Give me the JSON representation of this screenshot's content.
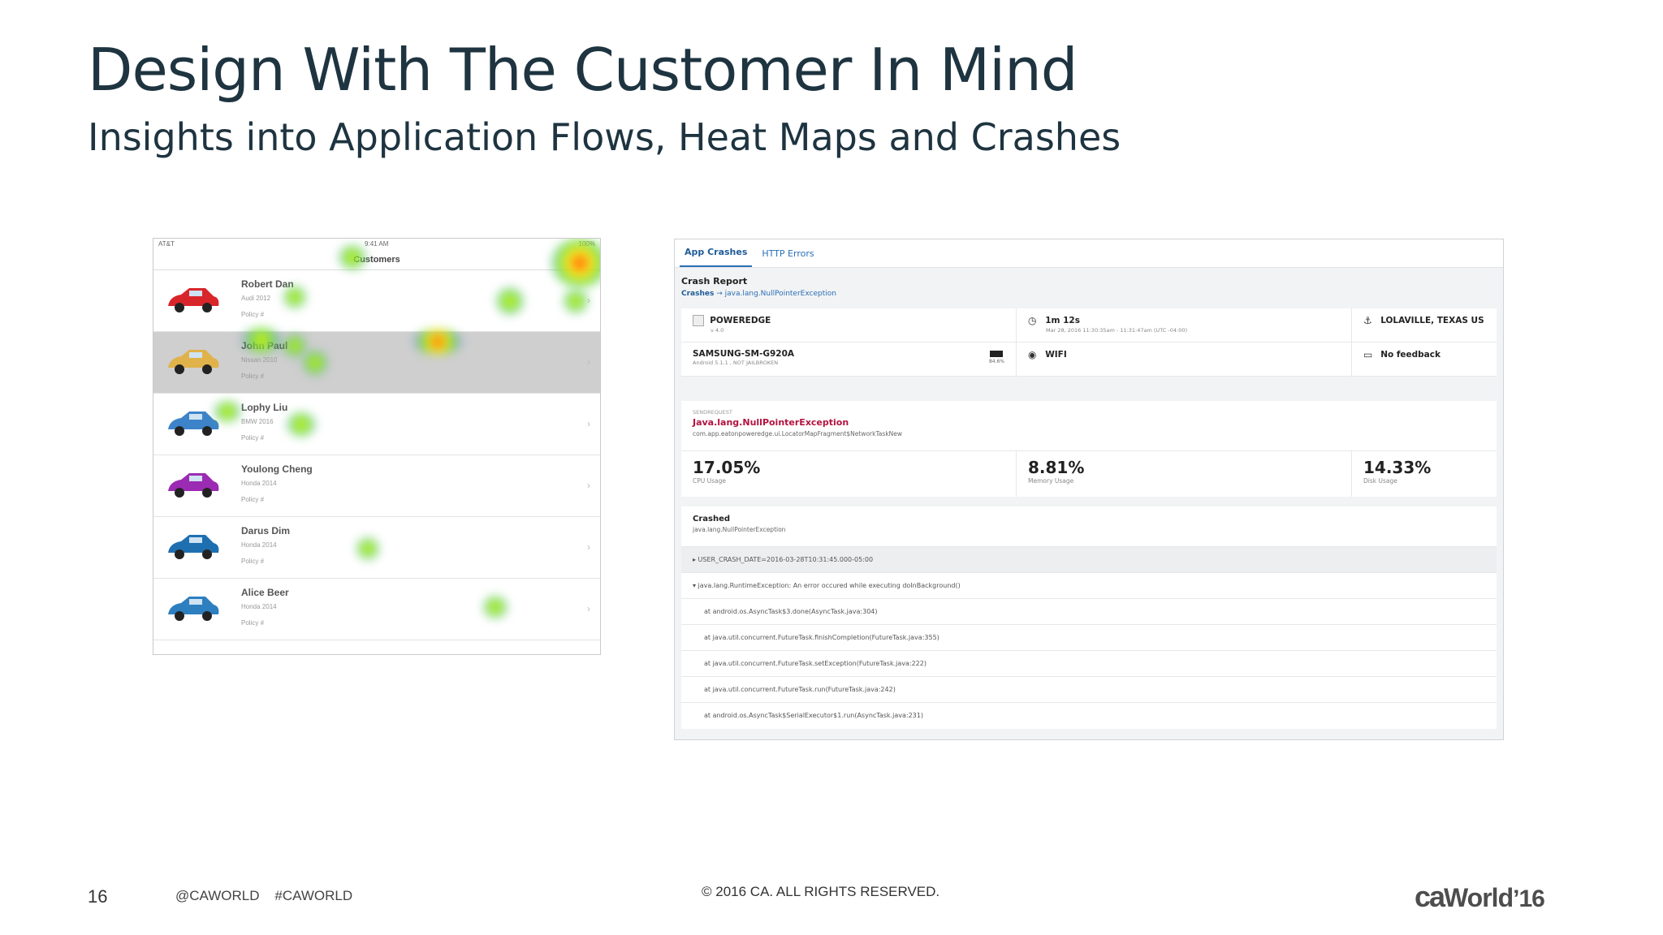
{
  "slide": {
    "title": "Design With The Customer In Mind",
    "subtitle": "Insights into Application Flows, Heat Maps and Crashes"
  },
  "phone": {
    "status_left": "AT&T",
    "status_center": "9:41 AM",
    "status_right": "100%",
    "nav_title": "Customers",
    "customers": [
      {
        "name": "Robert Dan",
        "vehicle": "Audi 2012",
        "policy": "Policy #",
        "vehicle_color": "#d8262b"
      },
      {
        "name": "John Paul",
        "vehicle": "Nissan 2010",
        "policy": "Policy #",
        "vehicle_color": "#e0b24a"
      },
      {
        "name": "Lophy Liu",
        "vehicle": "BMW 2016",
        "policy": "Policy #",
        "vehicle_color": "#3d83c9"
      },
      {
        "name": "Youlong Cheng",
        "vehicle": "Honda 2014",
        "policy": "Policy #",
        "vehicle_color": "#9c2bb3"
      },
      {
        "name": "Darus Dim",
        "vehicle": "Honda 2014",
        "policy": "Policy #",
        "vehicle_color": "#1e6fb0"
      },
      {
        "name": "Alice Beer",
        "vehicle": "Honda 2014",
        "policy": "Policy #",
        "vehicle_color": "#2d7fbf"
      }
    ]
  },
  "crash": {
    "tabs": [
      "App Crashes",
      "HTTP Errors"
    ],
    "heading": "Crash Report",
    "crumb_root": "Crashes",
    "crumb_arrow": "→",
    "crumb_leaf": "java.lang.NullPointerException",
    "app_name": "POWEREDGE",
    "app_version": "v 4.0",
    "duration": "1m 12s",
    "duration_detail": "Mar 28, 2016 11:30:35am - 11:31:47am (UTC -04:00)",
    "location": "LOLAVILLE, TEXAS US",
    "device": "SAMSUNG-SM-G920A",
    "device_os": "Android 5.1.1 , NOT JAILBROKEN",
    "battery": "84.6%",
    "network": "WIFI",
    "feedback": "No feedback",
    "exc_kind": "SENDREQUEST",
    "exc_name": "Java.lang.NullPointerException",
    "exc_class": "com.app.eatonpoweredge.ui.LocatorMapFragment$NetworkTaskNew",
    "metrics": [
      {
        "value": "17.05%",
        "label": "CPU Usage"
      },
      {
        "value": "8.81%",
        "label": "Memory Usage"
      },
      {
        "value": "14.33%",
        "label": "Disk Usage"
      }
    ],
    "crashed_title": "Crashed",
    "crashed_sub": "java.lang.NullPointerException",
    "trace": [
      "▸  USER_CRASH_DATE=2016-03-28T10:31:45.000-05:00",
      "▾  java.lang.RuntimeException: An error occured while executing doInBackground()",
      "at android.os.AsyncTask$3.done(AsyncTask.java:304)",
      "at java.util.concurrent.FutureTask.finishCompletion(FutureTask.java:355)",
      "at java.util.concurrent.FutureTask.setException(FutureTask.java:222)",
      "at java.util.concurrent.FutureTask.run(FutureTask.java:242)",
      "at android.os.AsyncTask$SerialExecutor$1.run(AsyncTask.java:231)"
    ]
  },
  "footer": {
    "page_number": "16",
    "handles": "@CAWORLD    #CAWORLD",
    "copyright": "© 2016 CA. ALL RIGHTS RESERVED.",
    "logo_ca": "ca",
    "logo_world": "World",
    "logo_year": "’16"
  }
}
